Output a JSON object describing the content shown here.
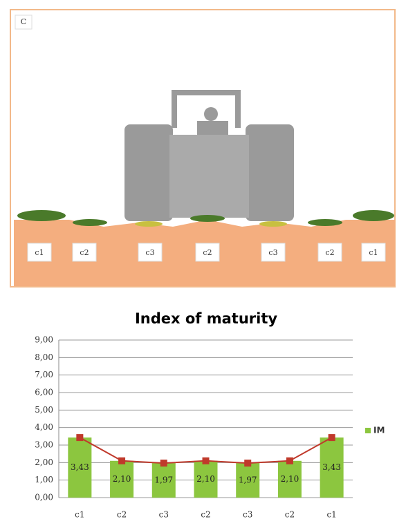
{
  "panel": {
    "label": "C",
    "zones": [
      "c1",
      "c2",
      "c3",
      "c2",
      "c3",
      "c2",
      "c1"
    ]
  },
  "chart_data": {
    "type": "bar",
    "title": "Index of maturity",
    "categories": [
      "c1",
      "c2",
      "c3",
      "c2",
      "c3",
      "c2",
      "c1"
    ],
    "series": [
      {
        "name": "IM",
        "color": "#8cc63f",
        "line_color": "#c0392b",
        "values": [
          3.43,
          2.1,
          1.97,
          2.1,
          1.97,
          2.1,
          3.43
        ],
        "value_labels": [
          "3,43",
          "2,10",
          "1,97",
          "2,10",
          "1,97",
          "2,10",
          "3,43"
        ]
      }
    ],
    "ylim": [
      0,
      9
    ],
    "yticks": [
      {
        "value": 0,
        "label": "0,00"
      },
      {
        "value": 1,
        "label": "1,00"
      },
      {
        "value": 2,
        "label": "2,00"
      },
      {
        "value": 3,
        "label": "3,00"
      },
      {
        "value": 4,
        "label": "4,00"
      },
      {
        "value": 5,
        "label": "5,00"
      },
      {
        "value": 6,
        "label": "6,00"
      },
      {
        "value": 7,
        "label": "7,00"
      },
      {
        "value": 8,
        "label": "8,00"
      },
      {
        "value": 9,
        "label": "9,00"
      }
    ],
    "grid": true,
    "legend": "right"
  }
}
